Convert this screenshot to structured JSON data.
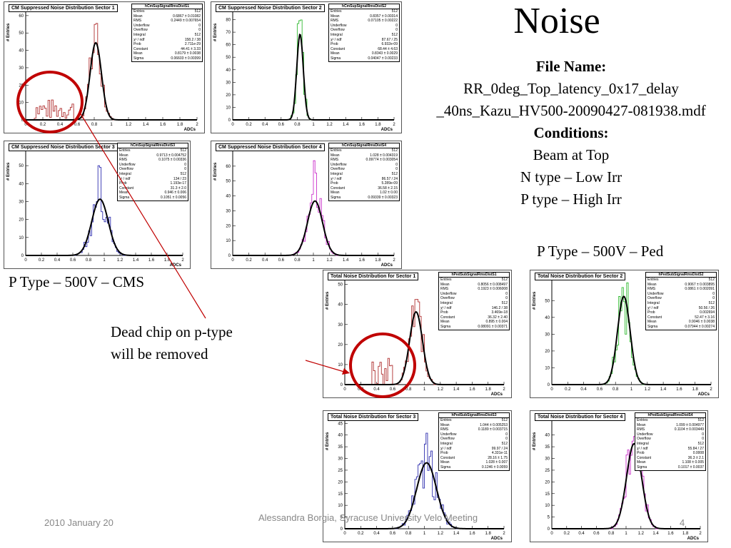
{
  "slide": {
    "title": "Noise",
    "file_name_label": "File Name:",
    "file_name": "RR_0deg_Top_latency_0x17_delay _40ns_Kazu_HV500-20090427-081938.mdf",
    "conditions_label": "Conditions:",
    "conditions": [
      "Beam at Top",
      "N type – Low Irr",
      "P type – High Irr"
    ],
    "label_ped": "P Type – 500V – Ped",
    "label_cms": "P Type – 500V – CMS",
    "annotation": [
      "Dead chip on p-type",
      "will be removed"
    ],
    "footer_date": "2010 January 20",
    "footer_author": "Alessandra Borgia, Syracuse University Velo Meeting",
    "page_number": "4",
    "annotation_color": "#c00000"
  },
  "stat_labels": [
    "Entries",
    "Mean",
    "RMS",
    "Underflow",
    "Overflow",
    "Integral",
    "χ² / ndf",
    "Prob",
    "Constant",
    "Mean",
    "Sigma"
  ],
  "chart_data": [
    {
      "type": "histogram",
      "title": "CM Suppressed Noise Distribution Sector 1",
      "stats_name": "hCmSupSignalRmsDistS1",
      "color": "#b03030",
      "xlabel": "ADCs",
      "ylabel": "# Entries",
      "xlim": [
        0,
        2
      ],
      "ylim": [
        0,
        62
      ],
      "xticks": [
        0,
        0.2,
        0.4,
        0.6,
        0.8,
        1,
        1.2,
        1.4,
        1.6,
        1.8,
        2
      ],
      "yticks": [
        0,
        10,
        20,
        30,
        40,
        50,
        60
      ],
      "fit": {
        "constant": 44.41,
        "mean": 0.8179,
        "sigma": 0.06603
      },
      "stats": [
        "512",
        "0.6867 ± 0.01082",
        "0.2449 ± 0.007654",
        "0",
        "0",
        "512",
        "158.2 / 38",
        "2.711e-29",
        "44.41 ± 3.33",
        "0.8179 ± 0.0038",
        "0.06603 ± 0.00399"
      ],
      "peak": 60,
      "hump": {
        "from": 0.1,
        "to": 0.55,
        "level": 12
      }
    },
    {
      "type": "histogram",
      "title": "CM Suppressed Noise Distribution Sector 2",
      "stats_name": "hCmSupSignalRmsDistS2",
      "color": "#33bb33",
      "xlabel": "ADCs",
      "ylabel": "# Entries",
      "xlim": [
        0,
        2
      ],
      "ylim": [
        0,
        86
      ],
      "xticks": [
        0,
        0.2,
        0.4,
        0.6,
        0.8,
        1,
        1.2,
        1.4,
        1.6,
        1.8,
        2
      ],
      "yticks": [
        0,
        10,
        20,
        30,
        40,
        50,
        60,
        70,
        80
      ],
      "fit": {
        "constant": 68.44,
        "mean": 0.8343,
        "sigma": 0.04047
      },
      "stats": [
        "512",
        "0.8357 ± 0.00314",
        "0.07105 ± 0.00222",
        "0",
        "0",
        "512",
        "87.67 / 25",
        "6.932e-09",
        "68.44 ± 4.63",
        "0.8343 ± 0.0029",
        "0.04047 ± 0.00233"
      ],
      "peak": 80
    },
    {
      "type": "histogram",
      "title": "CM Suppressed Noise Distribution Sector 3",
      "stats_name": "hCmSupSignalRmsDistS3",
      "color": "#3030b0",
      "xlabel": "ADCs",
      "ylabel": "# Entries",
      "xlim": [
        0,
        2
      ],
      "ylim": [
        0,
        58
      ],
      "xticks": [
        0,
        0.2,
        0.4,
        0.6,
        0.8,
        1,
        1.2,
        1.4,
        1.6,
        1.8,
        2
      ],
      "yticks": [
        0,
        10,
        20,
        30,
        40,
        50
      ],
      "fit": {
        "constant": 31.3,
        "mean": 0.946,
        "sigma": 0.1051
      },
      "stats": [
        "512",
        "0.9713 ± 0.004752",
        "0.1075 ± 0.00336",
        "0",
        "0",
        "512",
        "134 / 23",
        "1.193e-17",
        "31.3 ± 2.0",
        "0.946 ± 0.006",
        "0.1051 ± 0.0056"
      ],
      "peak": 52
    },
    {
      "type": "histogram",
      "title": "CM Suppressed Noise Distribution Sector 4",
      "stats_name": "hCmSupSignalRmsDistS4",
      "color": "#cc33cc",
      "xlabel": "ADCs",
      "ylabel": "# Entries",
      "xlim": [
        0,
        2
      ],
      "ylim": [
        0,
        70
      ],
      "xticks": [
        0,
        0.2,
        0.4,
        0.6,
        0.8,
        1,
        1.2,
        1.4,
        1.6,
        1.8,
        2
      ],
      "yticks": [
        0,
        10,
        20,
        30,
        40,
        50,
        60
      ],
      "fit": {
        "constant": 36.58,
        "mean": 1.02,
        "sigma": 0.09339
      },
      "stats": [
        "512",
        "1.028 ± 0.004319",
        "0.09774 ± 0.003054",
        "0",
        "0",
        "512",
        "86.57 / 24",
        "5.289e-09",
        "36.58 ± 2.15",
        "1.02 ± 0.00",
        "0.09339 ± 0.00323"
      ],
      "peak": 65
    },
    {
      "type": "histogram",
      "title": "Total Noise Distribution for Sector 1",
      "stats_name": "hPedSubSignalRmsDistS1",
      "color": "#b03030",
      "xlabel": "ADCs",
      "ylabel": "# Entries",
      "xlim": [
        0,
        2
      ],
      "ylim": [
        0,
        52
      ],
      "xticks": [
        0,
        0.2,
        0.4,
        0.6,
        0.8,
        1,
        1.2,
        1.4,
        1.6,
        1.8,
        2
      ],
      "yticks": [
        0,
        10,
        20,
        30,
        40,
        50
      ],
      "fit": {
        "constant": 36.32,
        "mean": 0.895,
        "sigma": 0.08091
      },
      "stats": [
        "512",
        "0.8056 ± 0.008497",
        "0.1923 ± 0.006008",
        "0",
        "0",
        "512",
        "146.2 / 38",
        "3.469e-18",
        "36.32 ± 2.40",
        "0.895 ± 0.004",
        "0.08091 ± 0.00371"
      ],
      "peak": 48,
      "hump": {
        "from": 0.35,
        "to": 0.6,
        "level": 14
      }
    },
    {
      "type": "histogram",
      "title": "Total Noise Distribution for Sector 2",
      "stats_name": "hPedSubSignalRmsDistS2",
      "color": "#33bb33",
      "xlabel": "ADCs",
      "ylabel": "# Entries",
      "xlim": [
        0,
        2
      ],
      "ylim": [
        0,
        62
      ],
      "xticks": [
        0,
        0.2,
        0.4,
        0.6,
        0.8,
        1,
        1.2,
        1.4,
        1.6,
        1.8,
        2
      ],
      "yticks": [
        0,
        10,
        20,
        30,
        40,
        50
      ],
      "fit": {
        "constant": 52.47,
        "mean": 0.9046,
        "sigma": 0.07944
      },
      "stats": [
        "512",
        "0.9067 ± 0.003895",
        "0.0861 ± 0.002091",
        "0",
        "0",
        "512",
        "50.56 / 26",
        "0.002694",
        "52.47 ± 3.16",
        "0.9046 ± 0.0038",
        "0.07944 ± 0.00274"
      ],
      "peak": 58
    },
    {
      "type": "histogram",
      "title": "Total Noise Distribution for Sector 3",
      "stats_name": "hPedSubSignalRmsDistS3",
      "color": "#3030b0",
      "xlabel": "ADCs",
      "ylabel": "# Entries",
      "xlim": [
        0,
        2
      ],
      "ylim": [
        0,
        46
      ],
      "xticks": [
        0,
        0.2,
        0.4,
        0.6,
        0.8,
        1,
        1.2,
        1.4,
        1.6,
        1.8,
        2
      ],
      "yticks": [
        0,
        5,
        10,
        15,
        20,
        25,
        30,
        35,
        40,
        45
      ],
      "fit": {
        "constant": 28.16,
        "mean": 1.028,
        "sigma": 0.1246
      },
      "stats": [
        "512",
        "1.044 ± 0.005253",
        "0.1189 ± 0.003715",
        "0",
        "0",
        "512",
        "99.97 / 24",
        "4.331e-11",
        "28.16 ± 1.75",
        "1.028 ± 0.007",
        "0.1246 ± 0.0059"
      ],
      "peak": 42
    },
    {
      "type": "histogram",
      "title": "Total Noise Distribution for Sector 4",
      "stats_name": "hPedSubSignalRmsDistS4",
      "color": "#cc33cc",
      "xlabel": "ADCs",
      "ylabel": "# Entries",
      "xlim": [
        0,
        2
      ],
      "ylim": [
        0,
        46
      ],
      "xticks": [
        0,
        0.2,
        0.4,
        0.6,
        0.8,
        1,
        1.2,
        1.4,
        1.6,
        1.8,
        2
      ],
      "yticks": [
        0,
        5,
        10,
        15,
        20,
        25,
        30,
        35,
        40
      ],
      "fit": {
        "constant": 36.3,
        "mean": 1.108,
        "sigma": 0.1017
      },
      "stats": [
        "512",
        "1.099 ± 0.004977",
        "0.1104 ± 0.003449",
        "0",
        "0",
        "512",
        "55.84 / 27",
        "0.0008",
        "36.3 ± 2.1",
        "1.108 ± 0.005",
        "0.1017 ± 0.0037"
      ],
      "peak": 43
    }
  ]
}
